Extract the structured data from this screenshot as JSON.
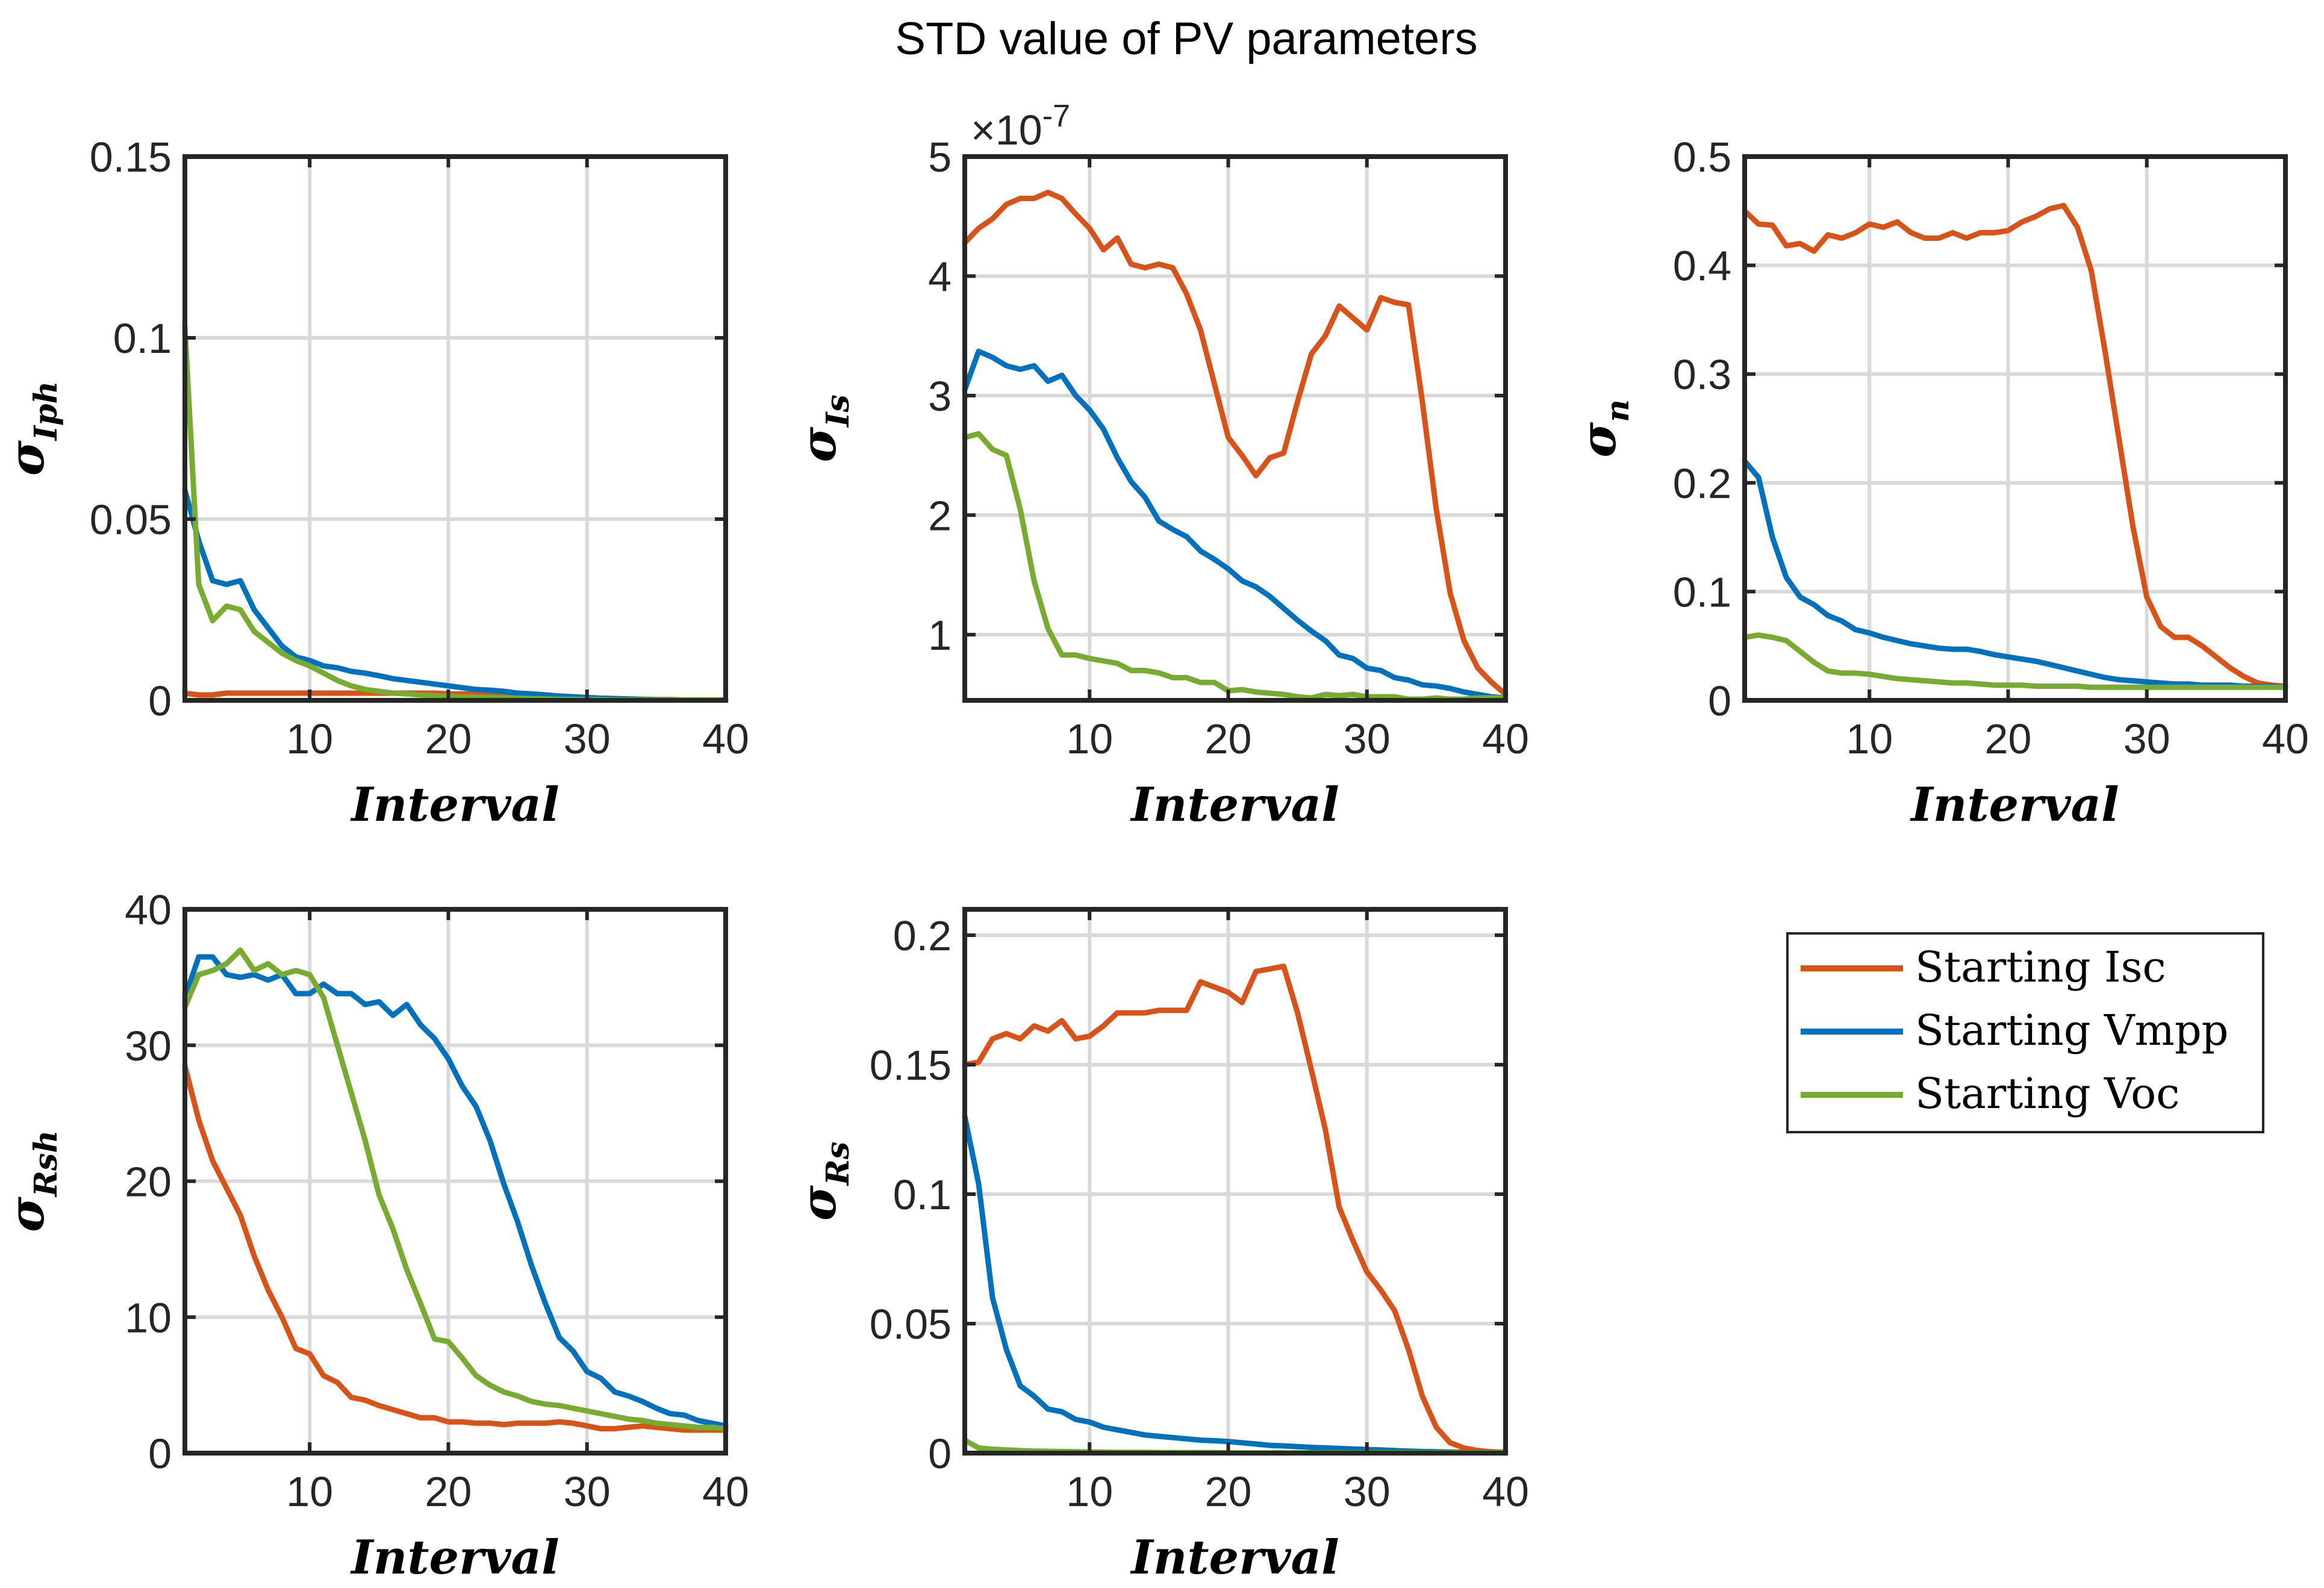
{
  "figure": {
    "title": "STD value of PV parameters"
  },
  "colors": {
    "isc": "#D95319",
    "vmpp": "#0072BD",
    "voc": "#77AC30"
  },
  "legend": {
    "entries": [
      "Starting Isc",
      "Starting Vmpp",
      "Starting Voc"
    ]
  },
  "chart_data": [
    {
      "type": "line",
      "title": "",
      "xlabel": "Interval",
      "ylabel": "σ",
      "ylabel_sub": "Iph",
      "xlim": [
        1,
        40
      ],
      "ylim": [
        0,
        0.15
      ],
      "xticks": [
        10,
        20,
        30,
        40
      ],
      "xtick_labels": [
        "10",
        "20",
        "30",
        "40"
      ],
      "yticks": [
        0,
        0.05,
        0.1,
        0.15
      ],
      "ytick_labels": [
        "0",
        "0.05",
        "0.1",
        "0.15"
      ],
      "exponent_label": "",
      "x": [
        1,
        2,
        3,
        4,
        5,
        6,
        7,
        8,
        9,
        10,
        11,
        12,
        13,
        14,
        15,
        16,
        17,
        18,
        19,
        20,
        21,
        22,
        23,
        24,
        25,
        26,
        27,
        28,
        29,
        30,
        31,
        32,
        33,
        34,
        35,
        36,
        37,
        38,
        39,
        40
      ],
      "series": [
        {
          "name": "Starting Isc",
          "values": [
            0.002,
            0.0015,
            0.0015,
            0.002,
            0.002,
            0.002,
            0.002,
            0.002,
            0.002,
            0.002,
            0.002,
            0.002,
            0.002,
            0.002,
            0.002,
            0.002,
            0.002,
            0.002,
            0.002,
            0.0018,
            0.0018,
            0.0018,
            0.0018,
            0.0017,
            0.0016,
            0.0014,
            0.0012,
            0.001,
            0.0008,
            0.0006,
            0.0004,
            0.0003,
            0.0002,
            0.0001,
            0.0001,
            0.0001,
            0.0001,
            0.0001,
            0.0001,
            0.0001
          ]
        },
        {
          "name": "Starting Vmpp",
          "values": [
            0.058,
            0.044,
            0.033,
            0.032,
            0.033,
            0.025,
            0.02,
            0.015,
            0.012,
            0.011,
            0.0095,
            0.009,
            0.008,
            0.0075,
            0.0068,
            0.006,
            0.0055,
            0.005,
            0.0045,
            0.004,
            0.0035,
            0.003,
            0.0028,
            0.0025,
            0.002,
            0.0018,
            0.0015,
            0.0012,
            0.001,
            0.0008,
            0.0006,
            0.0005,
            0.0004,
            0.0003,
            0.0002,
            0.0002,
            0.0001,
            0.0001,
            0.0001,
            0.0001
          ]
        },
        {
          "name": "Starting Voc",
          "values": [
            0.103,
            0.032,
            0.022,
            0.026,
            0.025,
            0.019,
            0.016,
            0.013,
            0.011,
            0.0095,
            0.0075,
            0.0055,
            0.004,
            0.003,
            0.0025,
            0.002,
            0.0018,
            0.0015,
            0.0013,
            0.0011,
            0.001,
            0.0009,
            0.0008,
            0.0007,
            0.0006,
            0.0005,
            0.0004,
            0.0003,
            0.0003,
            0.0002,
            0.0002,
            0.0001,
            0.0001,
            0.0001,
            0.0001,
            0.0001,
            0.0001,
            0.0001,
            0.0001,
            0.0001
          ]
        }
      ]
    },
    {
      "type": "line",
      "title": "",
      "xlabel": "Interval",
      "ylabel": "σ",
      "ylabel_sub": "Is",
      "xlim": [
        1,
        40
      ],
      "ylim": [
        4.5e-08,
        5e-07
      ],
      "xticks": [
        10,
        20,
        30,
        40
      ],
      "xtick_labels": [
        "10",
        "20",
        "30",
        "40"
      ],
      "yticks": [
        1e-07,
        2e-07,
        3e-07,
        4e-07,
        5e-07
      ],
      "ytick_labels": [
        "1",
        "2",
        "3",
        "4",
        "5"
      ],
      "exponent_label": "×10",
      "exponent_power": "-7",
      "x": [
        1,
        2,
        3,
        4,
        5,
        6,
        7,
        8,
        9,
        10,
        11,
        12,
        13,
        14,
        15,
        16,
        17,
        18,
        19,
        20,
        21,
        22,
        23,
        24,
        25,
        26,
        27,
        28,
        29,
        30,
        31,
        32,
        33,
        34,
        35,
        36,
        37,
        38,
        39,
        40
      ],
      "series": [
        {
          "name": "Starting Isc",
          "values": [
            4.28e-07,
            4.4e-07,
            4.48e-07,
            4.6e-07,
            4.65e-07,
            4.65e-07,
            4.7e-07,
            4.65e-07,
            4.52e-07,
            4.4e-07,
            4.22e-07,
            4.32e-07,
            4.1e-07,
            4.07e-07,
            4.1e-07,
            4.07e-07,
            3.85e-07,
            3.55e-07,
            3.1e-07,
            2.65e-07,
            2.5e-07,
            2.33e-07,
            2.48e-07,
            2.52e-07,
            2.95e-07,
            3.35e-07,
            3.5e-07,
            3.75e-07,
            3.65e-07,
            3.55e-07,
            3.82e-07,
            3.78e-07,
            3.76e-07,
            2.95e-07,
            2.05e-07,
            1.35e-07,
            9.5e-08,
            7.2e-08,
            6e-08,
            5e-08
          ]
        },
        {
          "name": "Starting Vmpp",
          "values": [
            3.05e-07,
            3.37e-07,
            3.32e-07,
            3.25e-07,
            3.22e-07,
            3.25e-07,
            3.12e-07,
            3.17e-07,
            3e-07,
            2.88e-07,
            2.72e-07,
            2.48e-07,
            2.28e-07,
            2.15e-07,
            1.95e-07,
            1.88e-07,
            1.82e-07,
            1.7e-07,
            1.63e-07,
            1.55e-07,
            1.45e-07,
            1.4e-07,
            1.32e-07,
            1.22e-07,
            1.12e-07,
            1.03e-07,
            9.5e-08,
            8.3e-08,
            8e-08,
            7.2e-08,
            7e-08,
            6.4e-08,
            6.2e-08,
            5.8e-08,
            5.7e-08,
            5.5e-08,
            5.2e-08,
            5e-08,
            4.8e-08,
            4.7e-08
          ]
        },
        {
          "name": "Starting Voc",
          "values": [
            2.65e-07,
            2.68e-07,
            2.55e-07,
            2.5e-07,
            2.05e-07,
            1.45e-07,
            1.05e-07,
            8.3e-08,
            8.3e-08,
            8e-08,
            7.8e-08,
            7.6e-08,
            7e-08,
            7e-08,
            6.8e-08,
            6.4e-08,
            6.4e-08,
            6e-08,
            6e-08,
            5.3e-08,
            5.4e-08,
            5.2e-08,
            5.1e-08,
            5e-08,
            4.8e-08,
            4.7e-08,
            5e-08,
            4.9e-08,
            5e-08,
            4.8e-08,
            4.8e-08,
            4.8e-08,
            4.6e-08,
            4.6e-08,
            4.7e-08,
            4.6e-08,
            4.6e-08,
            4.7e-08,
            4.7e-08,
            4.7e-08
          ]
        }
      ]
    },
    {
      "type": "line",
      "title": "",
      "xlabel": "Interval",
      "ylabel": "σ",
      "ylabel_sub": "n",
      "xlim": [
        1,
        40
      ],
      "ylim": [
        0,
        0.5
      ],
      "xticks": [
        10,
        20,
        30,
        40
      ],
      "xtick_labels": [
        "10",
        "20",
        "30",
        "40"
      ],
      "yticks": [
        0,
        0.1,
        0.2,
        0.3,
        0.4,
        0.5
      ],
      "ytick_labels": [
        "0",
        "0.1",
        "0.2",
        "0.3",
        "0.4",
        "0.5"
      ],
      "exponent_label": "",
      "x": [
        1,
        2,
        3,
        4,
        5,
        6,
        7,
        8,
        9,
        10,
        11,
        12,
        13,
        14,
        15,
        16,
        17,
        18,
        19,
        20,
        21,
        22,
        23,
        24,
        25,
        26,
        27,
        28,
        29,
        30,
        31,
        32,
        33,
        34,
        35,
        36,
        37,
        38,
        39,
        40
      ],
      "series": [
        {
          "name": "Starting Isc",
          "values": [
            0.45,
            0.438,
            0.437,
            0.418,
            0.42,
            0.413,
            0.428,
            0.425,
            0.43,
            0.438,
            0.435,
            0.44,
            0.43,
            0.425,
            0.425,
            0.43,
            0.425,
            0.43,
            0.43,
            0.432,
            0.44,
            0.445,
            0.452,
            0.455,
            0.435,
            0.395,
            0.32,
            0.24,
            0.16,
            0.095,
            0.068,
            0.058,
            0.058,
            0.05,
            0.04,
            0.03,
            0.022,
            0.016,
            0.014,
            0.013
          ]
        },
        {
          "name": "Starting Vmpp",
          "values": [
            0.22,
            0.205,
            0.15,
            0.113,
            0.095,
            0.088,
            0.078,
            0.073,
            0.065,
            0.062,
            0.058,
            0.055,
            0.052,
            0.05,
            0.048,
            0.047,
            0.047,
            0.045,
            0.042,
            0.04,
            0.038,
            0.036,
            0.033,
            0.03,
            0.027,
            0.024,
            0.021,
            0.019,
            0.018,
            0.017,
            0.016,
            0.015,
            0.015,
            0.014,
            0.014,
            0.014,
            0.013,
            0.013,
            0.013,
            0.012
          ]
        },
        {
          "name": "Starting Voc",
          "values": [
            0.058,
            0.06,
            0.058,
            0.055,
            0.045,
            0.035,
            0.027,
            0.025,
            0.025,
            0.024,
            0.022,
            0.02,
            0.019,
            0.018,
            0.017,
            0.016,
            0.016,
            0.015,
            0.014,
            0.014,
            0.014,
            0.013,
            0.013,
            0.013,
            0.013,
            0.012,
            0.012,
            0.012,
            0.012,
            0.012,
            0.012,
            0.012,
            0.012,
            0.012,
            0.012,
            0.012,
            0.012,
            0.012,
            0.012,
            0.012
          ]
        }
      ]
    },
    {
      "type": "line",
      "title": "",
      "xlabel": "Interval",
      "ylabel": "σ",
      "ylabel_sub": "Rsh",
      "xlim": [
        1,
        40
      ],
      "ylim": [
        0,
        40
      ],
      "xticks": [
        10,
        20,
        30,
        40
      ],
      "xtick_labels": [
        "10",
        "20",
        "30",
        "40"
      ],
      "yticks": [
        0,
        10,
        20,
        30,
        40
      ],
      "ytick_labels": [
        "0",
        "10",
        "20",
        "30",
        "40"
      ],
      "exponent_label": "",
      "x": [
        1,
        2,
        3,
        4,
        5,
        6,
        7,
        8,
        9,
        10,
        11,
        12,
        13,
        14,
        15,
        16,
        17,
        18,
        19,
        20,
        21,
        22,
        23,
        24,
        25,
        26,
        27,
        28,
        29,
        30,
        31,
        32,
        33,
        34,
        35,
        36,
        37,
        38,
        39,
        40
      ],
      "series": [
        {
          "name": "Starting Isc",
          "values": [
            28.5,
            24.5,
            21.5,
            19.5,
            17.5,
            14.5,
            12.0,
            10.0,
            7.7,
            7.3,
            5.7,
            5.2,
            4.1,
            3.9,
            3.5,
            3.2,
            2.9,
            2.6,
            2.6,
            2.3,
            2.3,
            2.2,
            2.2,
            2.1,
            2.2,
            2.2,
            2.2,
            2.3,
            2.2,
            2.0,
            1.8,
            1.8,
            1.9,
            2.0,
            1.9,
            1.8,
            1.7,
            1.7,
            1.7,
            1.7
          ]
        },
        {
          "name": "Starting Vmpp",
          "values": [
            33.5,
            36.5,
            36.5,
            35.2,
            35.0,
            35.2,
            34.8,
            35.2,
            33.8,
            33.8,
            34.5,
            33.8,
            33.8,
            33.0,
            33.2,
            32.2,
            33.0,
            31.5,
            30.5,
            29.0,
            27.0,
            25.5,
            23.0,
            19.8,
            17.0,
            13.8,
            11.0,
            8.5,
            7.5,
            6.0,
            5.5,
            4.5,
            4.2,
            3.8,
            3.3,
            2.9,
            2.8,
            2.4,
            2.2,
            2.0
          ]
        },
        {
          "name": "Starting Voc",
          "values": [
            32.8,
            35.2,
            35.5,
            36.0,
            37.0,
            35.5,
            36.0,
            35.2,
            35.5,
            35.2,
            33.5,
            30.0,
            26.5,
            23.0,
            19.0,
            16.5,
            13.5,
            11.0,
            8.4,
            8.2,
            7.0,
            5.7,
            5.0,
            4.5,
            4.2,
            3.8,
            3.6,
            3.5,
            3.3,
            3.1,
            2.9,
            2.7,
            2.5,
            2.4,
            2.2,
            2.1,
            2.0,
            1.9,
            1.9,
            1.8
          ]
        }
      ]
    },
    {
      "type": "line",
      "title": "",
      "xlabel": "Interval",
      "ylabel": "σ",
      "ylabel_sub": "Rs",
      "xlim": [
        1,
        40
      ],
      "ylim": [
        0,
        0.21
      ],
      "xticks": [
        10,
        20,
        30,
        40
      ],
      "xtick_labels": [
        "10",
        "20",
        "30",
        "40"
      ],
      "yticks": [
        0,
        0.05,
        0.1,
        0.15,
        0.2
      ],
      "ytick_labels": [
        "0",
        "0.05",
        "0.1",
        "0.15",
        "0.2"
      ],
      "exponent_label": "",
      "x": [
        1,
        2,
        3,
        4,
        5,
        6,
        7,
        8,
        9,
        10,
        11,
        12,
        13,
        14,
        15,
        16,
        17,
        18,
        19,
        20,
        21,
        22,
        23,
        24,
        25,
        26,
        27,
        28,
        29,
        30,
        31,
        32,
        33,
        34,
        35,
        36,
        37,
        38,
        39,
        40
      ],
      "series": [
        {
          "name": "Starting Isc",
          "values": [
            0.15,
            0.151,
            0.16,
            0.162,
            0.16,
            0.165,
            0.163,
            0.167,
            0.16,
            0.161,
            0.165,
            0.17,
            0.17,
            0.17,
            0.171,
            0.171,
            0.171,
            0.182,
            0.18,
            0.178,
            0.174,
            0.186,
            0.187,
            0.188,
            0.17,
            0.148,
            0.125,
            0.095,
            0.082,
            0.07,
            0.063,
            0.055,
            0.04,
            0.022,
            0.01,
            0.004,
            0.002,
            0.001,
            0.0005,
            0.0003
          ]
        },
        {
          "name": "Starting Vmpp",
          "values": [
            0.13,
            0.104,
            0.06,
            0.04,
            0.026,
            0.022,
            0.017,
            0.016,
            0.013,
            0.012,
            0.01,
            0.009,
            0.008,
            0.007,
            0.0065,
            0.006,
            0.0055,
            0.005,
            0.0048,
            0.0045,
            0.004,
            0.0035,
            0.003,
            0.0028,
            0.0025,
            0.0022,
            0.002,
            0.0018,
            0.0016,
            0.0014,
            0.0012,
            0.001,
            0.0008,
            0.0006,
            0.0005,
            0.0004,
            0.0003,
            0.0002,
            0.0002,
            0.0001
          ]
        },
        {
          "name": "Starting Voc",
          "values": [
            0.005,
            0.002,
            0.0015,
            0.0012,
            0.001,
            0.0008,
            0.0007,
            0.0006,
            0.0005,
            0.0004,
            0.0004,
            0.0003,
            0.0003,
            0.0003,
            0.0002,
            0.0002,
            0.0002,
            0.0002,
            0.0002,
            0.0001,
            0.0001,
            0.0001,
            0.0001,
            0.0001,
            0.0001,
            0.0001,
            0.0001,
            0.0001,
            0.0001,
            0.0001,
            0.0001,
            0.0001,
            0.0001,
            0.0001,
            0.0001,
            0.0001,
            0.0001,
            0.0001,
            0.0001,
            0.0001
          ]
        }
      ]
    }
  ]
}
